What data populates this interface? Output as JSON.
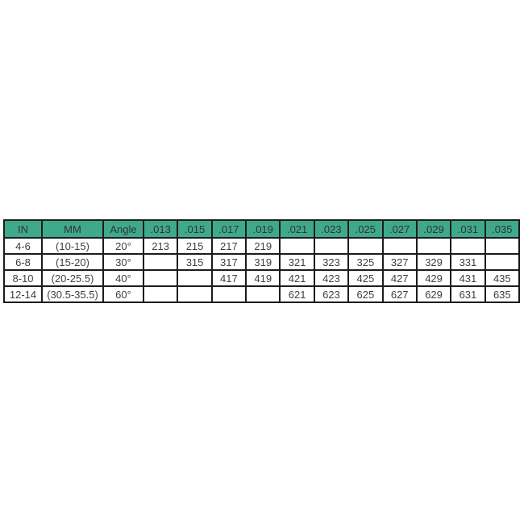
{
  "colors": {
    "header_bg": "#3fa98c",
    "header_text": "#2f3338",
    "cell_text": "#3c4043",
    "border": "#1c1c1c",
    "background": "#ffffff"
  },
  "chart_data": {
    "type": "table",
    "title": "",
    "columns": [
      "IN",
      "MM",
      "Angle",
      ".013",
      ".015",
      ".017",
      ".019",
      ".021",
      ".023",
      ".025",
      ".027",
      ".029",
      ".031",
      ".035"
    ],
    "rows": [
      [
        "4-6",
        "(10-15)",
        "20°",
        "213",
        "215",
        "217",
        "219",
        "",
        "",
        "",
        "",
        "",
        "",
        ""
      ],
      [
        "6-8",
        "(15-20)",
        "30°",
        "",
        "315",
        "317",
        "319",
        "321",
        "323",
        "325",
        "327",
        "329",
        "331",
        ""
      ],
      [
        "8-10",
        "(20-25.5)",
        "40°",
        "",
        "",
        "417",
        "419",
        "421",
        "423",
        "425",
        "427",
        "429",
        "431",
        "435"
      ],
      [
        "12-14",
        "(30.5-35.5)",
        "60°",
        "",
        "",
        "",
        "",
        "621",
        "623",
        "625",
        "627",
        "629",
        "631",
        "635"
      ]
    ]
  }
}
